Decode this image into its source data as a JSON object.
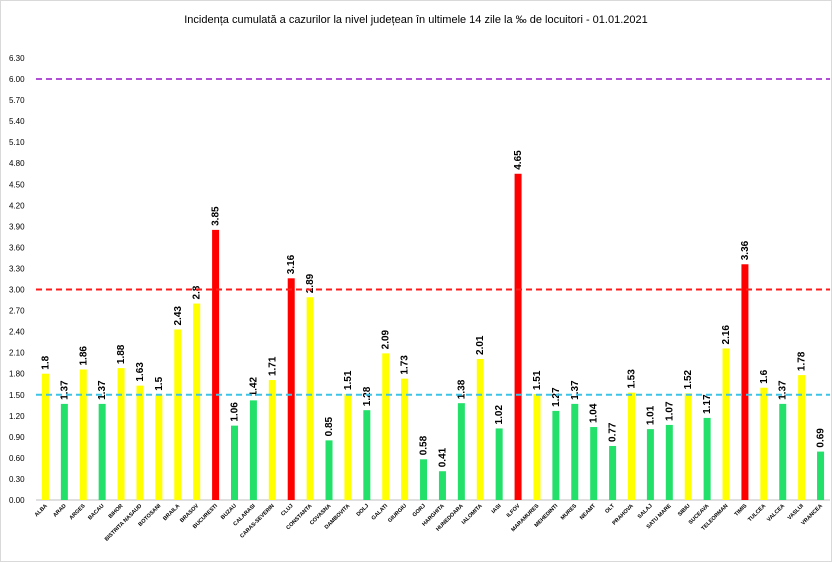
{
  "chart_data": {
    "type": "bar",
    "title": "Incidența cumulată a cazurilor la nivel județean în ultimele 14 zile la ‰ de locuitori - 01.01.2021",
    "xlabel": "",
    "ylabel": "",
    "ylim": [
      0,
      6.3
    ],
    "yticks": [
      "0.00",
      "0.30",
      "0.60",
      "0.90",
      "1.20",
      "1.50",
      "1.80",
      "2.10",
      "2.40",
      "2.70",
      "3.00",
      "3.30",
      "3.60",
      "3.90",
      "4.20",
      "4.50",
      "4.80",
      "5.10",
      "5.40",
      "5.70",
      "6.00",
      "6.30"
    ],
    "categories": [
      "ALBA",
      "ARAD",
      "ARGES",
      "BACAU",
      "BIHOR",
      "BISTRITA NASAUD",
      "BOTOSANI",
      "BRAILA",
      "BRASOV",
      "BUCURESTI",
      "BUZAU",
      "CALARASI",
      "CARAS-SEVERIN",
      "CLUJ",
      "CONSTANTA",
      "COVASNA",
      "DAMBOVITA",
      "DOLJ",
      "GALATI",
      "GIURGIU",
      "GORJ",
      "HARGHITA",
      "HUNEDOARA",
      "IALOMITA",
      "IASI",
      "ILFOV",
      "MARAMURES",
      "MEHEDINTI",
      "MURES",
      "NEAMT",
      "OLT",
      "PRAHOVA",
      "SALAJ",
      "SATU MARE",
      "SIBIU",
      "SUCEAVA",
      "TELEORMAN",
      "TIMIS",
      "TULCEA",
      "VALCEA",
      "VASLUI",
      "VRANCEA"
    ],
    "values": [
      1.8,
      1.37,
      1.86,
      1.37,
      1.88,
      1.63,
      1.5,
      2.43,
      2.8,
      3.85,
      1.06,
      1.42,
      1.71,
      3.16,
      2.89,
      0.85,
      1.51,
      1.28,
      2.09,
      1.73,
      0.58,
      0.41,
      1.38,
      2.01,
      1.02,
      4.65,
      1.51,
      1.27,
      1.37,
      1.04,
      0.77,
      1.53,
      1.01,
      1.07,
      1.52,
      1.17,
      2.16,
      3.36,
      1.6,
      1.37,
      1.78,
      0.69
    ],
    "data_labels": [
      "1.8",
      "1.37",
      "1.86",
      "1.37",
      "1.88",
      "1.63",
      "1.5",
      "2.43",
      "2.8",
      "3.85",
      "1.06",
      "1.42",
      "1.71",
      "3.16",
      "2.89",
      "0.85",
      "1.51",
      "1.28",
      "2.09",
      "1.73",
      "0.58",
      "0.41",
      "1.38",
      "2.01",
      "1.02",
      "4.65",
      "1.51",
      "1.27",
      "1.37",
      "1.04",
      "0.77",
      "1.53",
      "1.01",
      "1.07",
      "1.52",
      "1.17",
      "2.16",
      "3.36",
      "1.6",
      "1.37",
      "1.78",
      "0.69"
    ],
    "thresholds": [
      {
        "value": 6.0,
        "color": "#b04fd6",
        "style": "dashed"
      },
      {
        "value": 3.0,
        "color": "#ff1a1a",
        "style": "dashed"
      },
      {
        "value": 1.5,
        "color": "#3cc4e8",
        "style": "dashed"
      }
    ],
    "colors": {
      "red": "#ff0000",
      "yellow": "#ffff00",
      "green": "#22e06a"
    },
    "grid": false,
    "legend": "none"
  }
}
